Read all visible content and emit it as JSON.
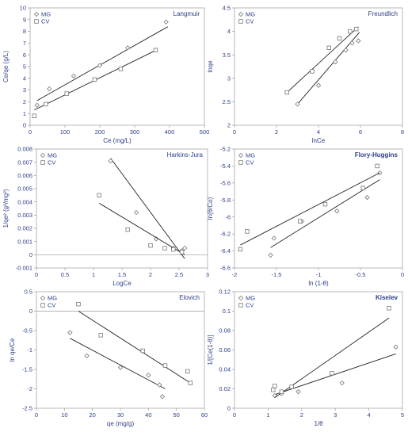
{
  "chart_data": [
    {
      "type": "scatter",
      "title": "Langmuir",
      "xlabel": "Ce (mg/L)",
      "ylabel": "Ce/qe (g/L)",
      "xlim": [
        0,
        500
      ],
      "ylim": [
        0,
        10
      ],
      "xticks": [
        0,
        100,
        200,
        300,
        400,
        500
      ],
      "yticks": [
        0,
        1,
        2,
        3,
        4,
        5,
        6,
        7,
        8,
        9,
        10
      ],
      "xtick_labels": [
        "0",
        "100",
        "200",
        "300",
        "400",
        "500"
      ],
      "ytick_labels": [
        "0",
        "1",
        "2",
        "3",
        "4",
        "5",
        "6",
        "7",
        "8",
        "9",
        "10"
      ],
      "legend": "top-left",
      "series": [
        {
          "name": "MG",
          "marker": "diamond",
          "x": [
            20,
            55,
            125,
            200,
            280,
            390
          ],
          "y": [
            1.7,
            3.1,
            4.2,
            5.1,
            6.6,
            8.8
          ],
          "fit": [
            [
              20,
              2.1
            ],
            [
              395,
              8.4
            ]
          ]
        },
        {
          "name": "CV",
          "marker": "square",
          "x": [
            12,
            45,
            105,
            185,
            260,
            360
          ],
          "y": [
            0.8,
            1.8,
            2.7,
            3.9,
            4.8,
            6.4
          ],
          "fit": [
            [
              12,
              1.3
            ],
            [
              365,
              6.45
            ]
          ]
        }
      ]
    },
    {
      "type": "scatter",
      "title": "Freundlich",
      "xlabel": "lnCe",
      "ylabel": "lnqe",
      "xlim": [
        0,
        8
      ],
      "ylim": [
        2,
        4.5
      ],
      "xticks": [
        0,
        2,
        4,
        6,
        8
      ],
      "yticks": [
        2,
        2.5,
        3,
        3.5,
        4,
        4.5
      ],
      "xtick_labels": [
        "0",
        "2",
        "4",
        "6",
        "8"
      ],
      "ytick_labels": [
        "2",
        "2.5",
        "3",
        "3.5",
        "4",
        "4.5"
      ],
      "legend": "top-left",
      "series": [
        {
          "name": "MG",
          "marker": "diamond",
          "x": [
            3.0,
            4.0,
            4.8,
            5.3,
            5.6,
            5.9
          ],
          "y": [
            2.45,
            2.85,
            3.35,
            3.6,
            3.75,
            3.8
          ],
          "fit": [
            [
              3.0,
              2.45
            ],
            [
              5.95,
              3.98
            ]
          ]
        },
        {
          "name": "CV",
          "marker": "square",
          "x": [
            2.5,
            3.7,
            4.5,
            5.0,
            5.5,
            5.8
          ],
          "y": [
            2.7,
            3.15,
            3.65,
            3.85,
            4.0,
            4.05
          ],
          "fit": [
            [
              2.5,
              2.7
            ],
            [
              5.9,
              4.1
            ]
          ]
        }
      ]
    },
    {
      "type": "scatter",
      "title": "Harkins-Jura",
      "xlabel": "LogCe",
      "ylabel": "1/qe² (g²/mg²)",
      "xlim": [
        0,
        3
      ],
      "ylim": [
        -0.001,
        0.008
      ],
      "xticks": [
        0,
        0.5,
        1,
        1.5,
        2,
        2.5,
        3
      ],
      "yticks": [
        -0.001,
        0,
        0.001,
        0.002,
        0.003,
        0.004,
        0.005,
        0.006,
        0.007,
        0.008
      ],
      "xtick_labels": [
        "0",
        "0.5",
        "1",
        "1.5",
        "2",
        "2.5",
        "3"
      ],
      "ytick_labels": [
        "-0.001",
        "0",
        "0.001",
        "0.002",
        "0.003",
        "0.004",
        "0.005",
        "0.006",
        "0.007",
        "0.008"
      ],
      "legend": "top-left",
      "series": [
        {
          "name": "MG",
          "marker": "diamond",
          "x": [
            1.3,
            1.75,
            2.1,
            2.4,
            2.55,
            2.6
          ],
          "y": [
            0.0071,
            0.0032,
            0.0012,
            0.0005,
            0.0003,
            0.0005
          ],
          "fit": [
            [
              1.3,
              0.0073
            ],
            [
              2.6,
              -0.0003
            ]
          ]
        },
        {
          "name": "CV",
          "marker": "square",
          "x": [
            1.1,
            1.6,
            2.0,
            2.25,
            2.4,
            2.55
          ],
          "y": [
            0.0045,
            0.0019,
            0.0007,
            0.0005,
            0.0004,
            0.0002
          ],
          "fit": [
            [
              1.1,
              0.0039
            ],
            [
              2.6,
              0.0
            ]
          ]
        }
      ]
    },
    {
      "type": "scatter",
      "title": "Flory-Huggins",
      "xlabel": "ln (1-θ)",
      "ylabel": "ln(θ/Co)",
      "xlim": [
        -2,
        0
      ],
      "ylim": [
        -6.6,
        -5.2
      ],
      "xticks": [
        -2,
        -1.5,
        -1,
        -0.5,
        0
      ],
      "yticks": [
        -6.6,
        -6.4,
        -6.2,
        -6,
        -5.8,
        -5.6,
        -5.4,
        -5.2
      ],
      "xtick_labels": [
        "-2",
        "-1.5",
        "-1",
        "-0.5",
        "0"
      ],
      "ytick_labels": [
        "-6.6",
        "-6.4",
        "-6.2",
        "-6",
        "-5.8",
        "-5.6",
        "-5.4",
        "-5.2"
      ],
      "legend": "top-left",
      "series": [
        {
          "name": "MG",
          "marker": "diamond",
          "x": [
            -1.57,
            -1.53,
            -1.2,
            -0.78,
            -0.42,
            -0.27
          ],
          "y": [
            -6.45,
            -6.25,
            -6.05,
            -5.93,
            -5.77,
            -5.48
          ],
          "fit": [
            [
              -1.57,
              -6.36
            ],
            [
              -0.27,
              -5.56
            ]
          ]
        },
        {
          "name": "CV",
          "marker": "square",
          "x": [
            -1.93,
            -1.85,
            -1.22,
            -0.92,
            -0.47,
            -0.3
          ],
          "y": [
            -6.38,
            -6.17,
            -6.05,
            -5.85,
            -5.66,
            -5.4
          ],
          "fit": [
            [
              -1.93,
              -6.33
            ],
            [
              -0.27,
              -5.48
            ]
          ]
        }
      ]
    },
    {
      "type": "scatter",
      "title": "Elovich",
      "xlabel": "qe (mg/g)",
      "ylabel": "ln qe/Ce",
      "xlim": [
        0,
        60
      ],
      "ylim": [
        -2.5,
        0.5
      ],
      "xticks": [
        0,
        10,
        20,
        30,
        40,
        50,
        60
      ],
      "yticks": [
        -2.5,
        -2,
        -1.5,
        -1,
        -0.5,
        0,
        0.5
      ],
      "xtick_labels": [
        "0",
        "10",
        "20",
        "30",
        "40",
        "50",
        "60"
      ],
      "ytick_labels": [
        "-2.5",
        "-2",
        "-1.5",
        "-1",
        "-0.5",
        "0",
        "0.5"
      ],
      "legend": "top-left",
      "series": [
        {
          "name": "MG",
          "marker": "diamond",
          "x": [
            12,
            18,
            30,
            40,
            44,
            45
          ],
          "y": [
            -0.55,
            -1.15,
            -1.45,
            -1.65,
            -1.9,
            -2.2
          ],
          "fit": [
            [
              12,
              -0.7
            ],
            [
              46,
              -2.0
            ]
          ]
        },
        {
          "name": "CV",
          "marker": "square",
          "x": [
            15,
            23,
            38,
            46,
            54,
            55
          ],
          "y": [
            0.18,
            -0.62,
            -1.02,
            -1.4,
            -1.55,
            -1.85
          ],
          "fit": [
            [
              15,
              0.0
            ],
            [
              55,
              -1.85
            ]
          ]
        }
      ]
    },
    {
      "type": "scatter",
      "title": "Kiselev",
      "xlabel": "1/θ",
      "ylabel": "1/[Ce(1-θ)]",
      "xlim": [
        0,
        5
      ],
      "ylim": [
        0,
        0.12
      ],
      "xticks": [
        0,
        1,
        2,
        3,
        4,
        5
      ],
      "yticks": [
        0,
        0.02,
        0.04,
        0.06,
        0.08,
        0.1,
        0.12
      ],
      "xtick_labels": [
        "0",
        "1",
        "2",
        "3",
        "4",
        "5"
      ],
      "ytick_labels": [
        "0",
        "0.02",
        "0.04",
        "0.06",
        "0.08",
        "0.1",
        "0.12"
      ],
      "legend": "top-left",
      "series": [
        {
          "name": "MG",
          "marker": "diamond",
          "x": [
            1.2,
            1.4,
            1.9,
            3.2,
            4.8
          ],
          "y": [
            0.013,
            0.015,
            0.017,
            0.026,
            0.063
          ],
          "fit": [
            [
              1.2,
              0.014
            ],
            [
              4.8,
              0.056
            ]
          ]
        },
        {
          "name": "CV",
          "marker": "square",
          "x": [
            1.15,
            1.2,
            1.4,
            1.7,
            2.9,
            4.6
          ],
          "y": [
            0.019,
            0.023,
            0.017,
            0.022,
            0.036,
            0.103
          ],
          "fit": [
            [
              1.2,
              0.011
            ],
            [
              4.6,
              0.093
            ]
          ]
        }
      ]
    }
  ]
}
